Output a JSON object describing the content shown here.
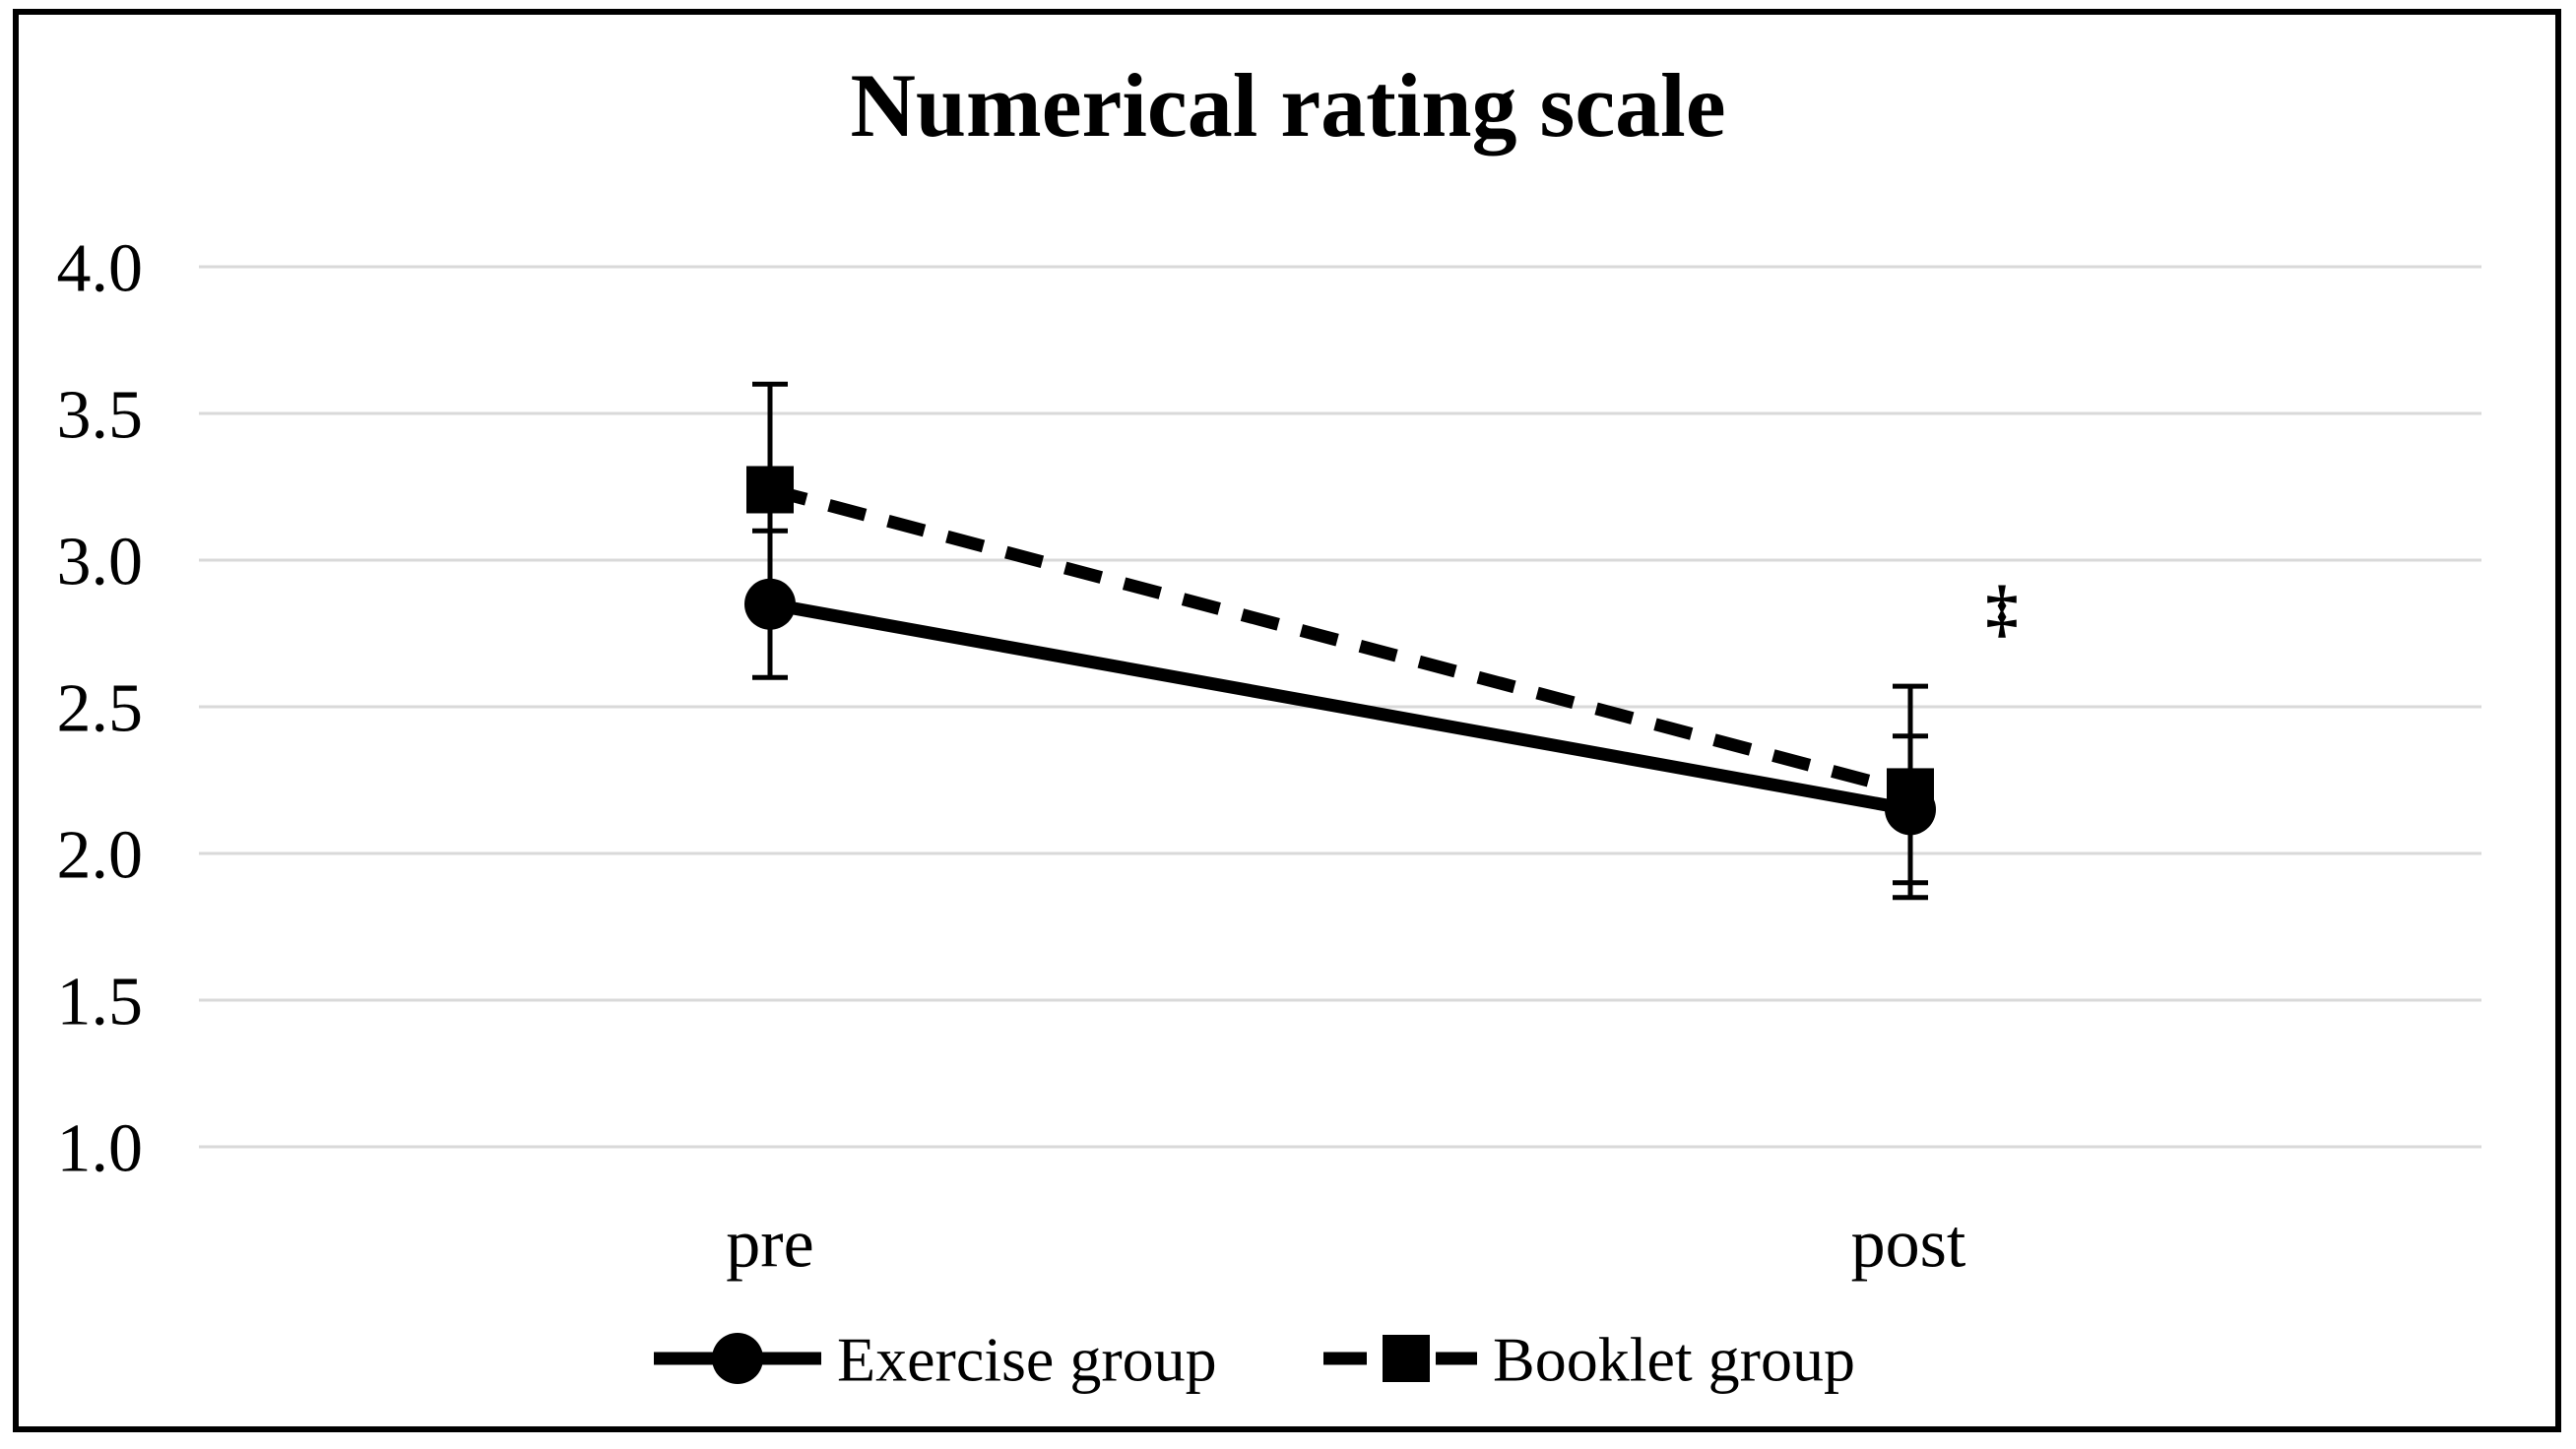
{
  "chart_data": {
    "type": "line",
    "title": "Numerical rating scale",
    "categories": [
      "pre",
      "post"
    ],
    "xlabel": "",
    "ylabel": "",
    "yticks": [
      "4.0",
      "3.5",
      "3.0",
      "2.5",
      "2.0",
      "1.5",
      "1.0"
    ],
    "ylim": [
      1.0,
      4.0
    ],
    "grid": "horizontal-only",
    "legend_position": "bottom-center",
    "series": [
      {
        "name": "Exercise group",
        "marker": "circle",
        "line": "solid",
        "values": [
          2.85,
          2.15
        ],
        "error": [
          0.25,
          0.25
        ]
      },
      {
        "name": "Booklet group",
        "marker": "square",
        "line": "dashed",
        "values": [
          3.24,
          2.21
        ],
        "error": [
          0.36,
          0.36
        ]
      }
    ],
    "annotation": {
      "text": "‡",
      "location": "right of post data points",
      "value": 2.84
    },
    "colors": {
      "series": "#000000",
      "gridline": "#d9d9d9",
      "background": "#ffffff",
      "frame": "#000000"
    }
  }
}
